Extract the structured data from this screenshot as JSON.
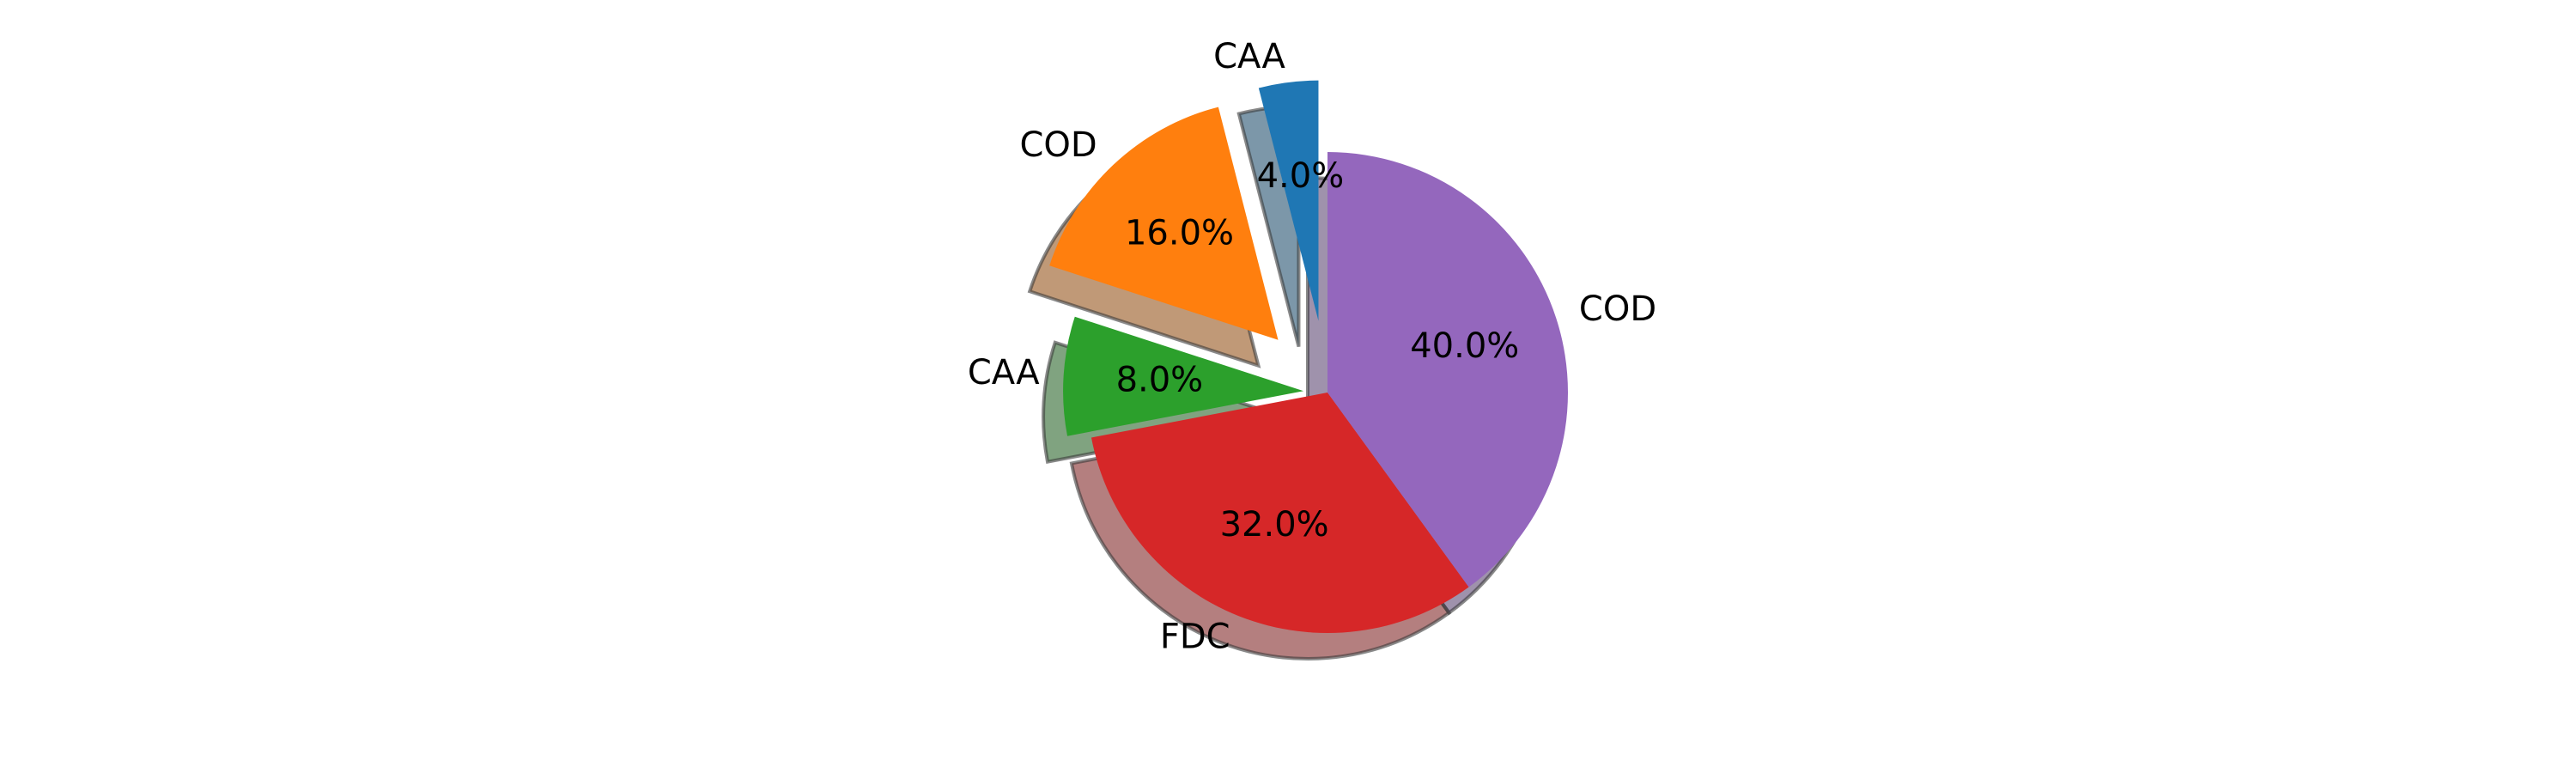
{
  "chart_data": {
    "type": "pie",
    "labels": [
      "CAA",
      "COD",
      "CAA",
      "FDC",
      "COD"
    ],
    "values": [
      4.0,
      16.0,
      8.0,
      32.0,
      40.0
    ],
    "percent_labels": [
      "4.0%",
      "16.0%",
      "8.0%",
      "32.0%",
      "40.0%"
    ],
    "colors": [
      "#1f77b4",
      "#ff7f0e",
      "#2ca02c",
      "#d62728",
      "#9467bd"
    ],
    "explode": [
      0.3,
      0.3,
      0.1,
      0.0,
      0.0
    ],
    "start_angle_deg": 90,
    "shadow": true
  }
}
